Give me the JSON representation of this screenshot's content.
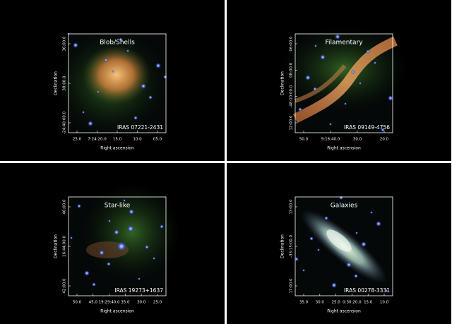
{
  "panels": [
    {
      "title": "Blob/Shells",
      "source": "IRAS 07221-2431",
      "xlabel": "Right ascension",
      "ylabel": "Declination",
      "xticks": [
        "25.0",
        "7:24:20.0",
        "15.0",
        "10.0",
        "05.0"
      ],
      "yticks": [
        "36:00.0",
        "38:00.0",
        "-24:40:00.0"
      ]
    },
    {
      "title": "Filamentary",
      "source": "IRAS 09149-4756",
      "xlabel": "Right ascension",
      "ylabel": "Declination",
      "xticks": [
        "50.0",
        "9:16:40.0",
        "30.0",
        "20.0"
      ],
      "yticks": [
        "06:00.0",
        "08:00.0",
        "-48:10:00.0",
        "12:00.0"
      ]
    },
    {
      "title": "Star-like",
      "source": "IRAS 19273+1637",
      "xlabel": "Right ascension",
      "ylabel": "Declination",
      "xticks": [
        "50.0",
        "45.0",
        "19:29:40.0",
        "35.0",
        "30.0",
        "25.0"
      ],
      "yticks": [
        "46:00.0",
        "16:44:00.0",
        "42:00.0"
      ]
    },
    {
      "title": "Galaxies",
      "source": "IRAS 00278-3331",
      "xlabel": "Right ascension",
      "ylabel": "Declination",
      "xticks": [
        "35.0",
        "30.0",
        "25.0",
        "0:30:20.0",
        "15.0",
        "10.0"
      ],
      "yticks": [
        "13:00.0",
        "-33:15:00.0",
        "17:00.0"
      ]
    }
  ]
}
